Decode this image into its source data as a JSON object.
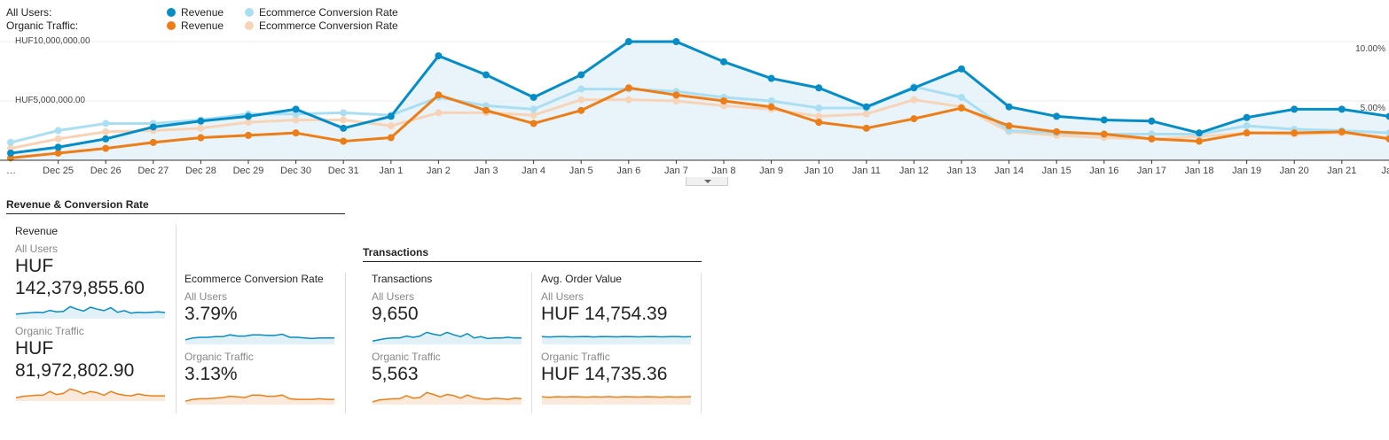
{
  "legend": {
    "all_users": "All Users:",
    "organic_traffic": "Organic Traffic:",
    "revenue": "Revenue",
    "conversion_rate": "Ecommerce Conversion Rate"
  },
  "colors": {
    "revenue_all": "#058dc7",
    "conv_all": "#aadff3",
    "revenue_organic": "#ed7e17",
    "conv_organic": "#f7d4b8",
    "area_fill": "#e2f1f8"
  },
  "chart_data": {
    "type": "line",
    "x": [
      "…",
      "Dec 25",
      "Dec 26",
      "Dec 27",
      "Dec 28",
      "Dec 29",
      "Dec 30",
      "Dec 31",
      "Jan 1",
      "Jan 2",
      "Jan 3",
      "Jan 4",
      "Jan 5",
      "Jan 6",
      "Jan 7",
      "Jan 8",
      "Jan 9",
      "Jan 10",
      "Jan 11",
      "Jan 12",
      "Jan 13",
      "Jan 14",
      "Jan 15",
      "Jan 16",
      "Jan 17",
      "Jan 18",
      "Jan 19",
      "Jan 20",
      "Jan 21",
      "Jan"
    ],
    "y_left_ticks": [
      "HUF10,000,000.00",
      "HUF5,000,000.00"
    ],
    "y_left_range": [
      0,
      10000000
    ],
    "y_right_ticks": [
      "10.00%",
      "5.00%"
    ],
    "y_right_range": [
      0,
      10
    ],
    "series": [
      {
        "name": "Revenue",
        "segment": "All Users",
        "axis": "left",
        "color": "#058dc7",
        "filled": true,
        "values": [
          600000,
          1100000,
          1800000,
          2800000,
          3300000,
          3700000,
          4300000,
          2700000,
          3700000,
          8800000,
          7200000,
          5300000,
          7200000,
          10000000,
          10000000,
          8300000,
          6900000,
          6100000,
          4500000,
          6100000,
          7700000,
          4500000,
          3700000,
          3400000,
          3300000,
          2300000,
          3600000,
          4300000,
          4300000,
          3700000
        ]
      },
      {
        "name": "Ecommerce Conversion Rate",
        "segment": "All Users",
        "axis": "right",
        "color": "#aadff3",
        "values": [
          1.5,
          2.5,
          3.1,
          3.1,
          3.4,
          3.9,
          3.9,
          4.0,
          3.8,
          5.3,
          4.6,
          4.3,
          6.0,
          6.0,
          5.8,
          5.3,
          5.0,
          4.4,
          4.4,
          6.2,
          5.3,
          2.5,
          2.3,
          2.2,
          2.2,
          2.2,
          2.9,
          2.6,
          2.5,
          2.3
        ]
      },
      {
        "name": "Revenue",
        "segment": "Organic Traffic",
        "axis": "left",
        "color": "#ed7e17",
        "values": [
          200000,
          600000,
          1000000,
          1500000,
          1900000,
          2100000,
          2300000,
          1600000,
          1900000,
          5500000,
          4200000,
          3100000,
          4200000,
          6100000,
          5500000,
          5000000,
          4500000,
          3200000,
          2700000,
          3500000,
          4400000,
          2900000,
          2400000,
          2200000,
          1800000,
          1600000,
          2300000,
          2300000,
          2400000,
          1800000
        ]
      },
      {
        "name": "Ecommerce Conversion Rate",
        "segment": "Organic Traffic",
        "axis": "right",
        "color": "#f7d4b8",
        "values": [
          1.0,
          1.8,
          2.4,
          2.5,
          2.7,
          3.2,
          3.4,
          3.4,
          2.9,
          4.0,
          4.0,
          3.8,
          5.1,
          5.1,
          5.0,
          4.6,
          4.3,
          3.7,
          3.9,
          5.1,
          4.5,
          2.4,
          2.1,
          1.9,
          1.8,
          2.0,
          2.3,
          2.2,
          2.3,
          1.9
        ]
      }
    ]
  },
  "sections": {
    "revenue_conversion": "Revenue & Conversion Rate",
    "transactions": "Transactions"
  },
  "cards": {
    "revenue": {
      "label": "Revenue",
      "all_label": "All Users",
      "all_value": "HUF 142,379,855.60",
      "organic_label": "Organic Traffic",
      "organic_value": "HUF 81,972,802.90",
      "spark_all": [
        3,
        3.5,
        4,
        4.5,
        4.2,
        6,
        4.8,
        5.2,
        9,
        7,
        5.5,
        8.5,
        7,
        5.8,
        8.2,
        4.5,
        5.8,
        3.8,
        4.5,
        4.2,
        4.5,
        4.8,
        4.3
      ],
      "spark_organic": [
        2,
        3,
        3.5,
        4,
        4,
        7,
        4.5,
        5.5,
        9,
        7.5,
        5,
        7,
        6,
        4,
        7,
        5,
        4,
        3.5,
        5,
        4,
        3.5,
        3.5,
        3.5
      ]
    },
    "conversion": {
      "label": "Ecommerce Conversion Rate",
      "all_label": "All Users",
      "all_value": "3.79%",
      "organic_label": "Organic Traffic",
      "organic_value": "3.13%",
      "spark_all": [
        3,
        4.5,
        5,
        5,
        5.5,
        5.5,
        7,
        6,
        6,
        7,
        7,
        6.5,
        6.5,
        7.5,
        5,
        5,
        4.5,
        4,
        4.5,
        4.5,
        4.5
      ],
      "spark_organic": [
        2,
        3.5,
        4,
        4,
        4.5,
        5,
        6,
        5.5,
        5,
        7,
        7,
        6,
        6,
        7,
        4,
        3.5,
        3.5,
        3.5,
        4,
        3.5,
        3.5
      ]
    },
    "transactions": {
      "label": "Transactions",
      "all_label": "All Users",
      "all_value": "9,650",
      "organic_label": "Organic Traffic",
      "organic_value": "5,563",
      "spark_all": [
        2,
        3,
        4,
        4.5,
        4.5,
        6,
        5,
        6,
        9,
        7.5,
        6.5,
        9,
        7,
        5.5,
        8,
        4.5,
        5.5,
        4,
        4.5,
        4.5,
        5,
        4.5,
        4.5
      ],
      "spark_organic": [
        1.5,
        3,
        3.5,
        4,
        4,
        6.5,
        4.5,
        5,
        9,
        7.5,
        5.5,
        7.5,
        6.5,
        4.5,
        7,
        5,
        4,
        3.5,
        4.5,
        4,
        3.5,
        4.5,
        4
      ]
    },
    "aov": {
      "label": "Avg. Order Value",
      "all_label": "All Users",
      "all_value": "HUF 14,754.39",
      "organic_label": "Organic Traffic",
      "organic_value": "HUF 14,735.36",
      "spark_all": [
        5.5,
        5.3,
        5.5,
        5.6,
        5.4,
        5.5,
        5.6,
        5.3,
        5.6,
        5.5,
        5.4,
        5.6,
        5.5,
        5.4,
        5.5,
        5.6,
        5.4,
        5.5,
        5.6,
        5.4,
        5.5
      ],
      "spark_organic": [
        5.5,
        5.2,
        5.6,
        5.4,
        5.6,
        5.5,
        5.3,
        5.6,
        5.4,
        5.7,
        5.3,
        5.6,
        5.5,
        5.4,
        5.6,
        5.5,
        5.3,
        5.6,
        5.4,
        5.5,
        5.6
      ]
    }
  }
}
